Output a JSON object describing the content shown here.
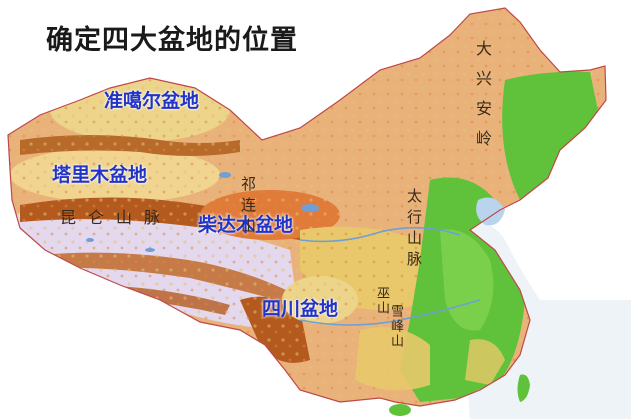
{
  "title": "确定四大盆地的位置",
  "basins": {
    "junggar": "准噶尔盆地",
    "tarim": "塔里木盆地",
    "qaidam": "柴达木盆地",
    "sichuan": "四川盆地"
  },
  "mountains": {
    "kunlun": "昆仑山脉",
    "qilian": "祁连山",
    "taihang": "太行山脉",
    "daxinganling": "大兴安岭",
    "wushan": "巫山",
    "xuefeng": "雪峰山"
  },
  "colors": {
    "lowland_green": "#5fc23a",
    "hill_yellow": "#e9c96a",
    "plateau_orange": "#d98a3a",
    "high_brown": "#b45a1e",
    "snow_lilac": "#e3d8ee",
    "water_blue": "#6f9fd6",
    "basin_label": "#2233c8"
  }
}
